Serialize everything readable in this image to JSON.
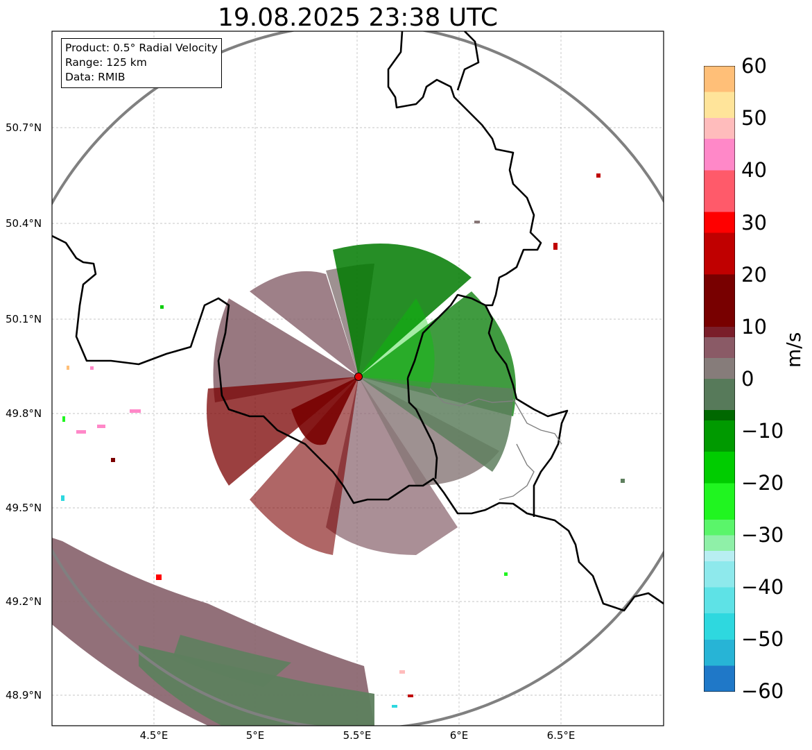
{
  "title": "19.08.2025 23:38 UTC",
  "info_box": {
    "product": "Product: 0.5° Radial Velocity",
    "range": "Range: 125 km",
    "data": "Data: RMIB"
  },
  "axes": {
    "y_ticks": [
      "50.7°N",
      "50.4°N",
      "50.1°N",
      "49.8°N",
      "49.5°N",
      "49.2°N",
      "48.9°N"
    ],
    "x_ticks": [
      "4.5°E",
      "5°E",
      "5.5°E",
      "6°E",
      "6.5°E"
    ]
  },
  "colorbar": {
    "unit": "m/s",
    "ticks": [
      "60",
      "50",
      "40",
      "30",
      "20",
      "10",
      "0",
      "−10",
      "−20",
      "−30",
      "−40",
      "−50",
      "−60"
    ],
    "range": [
      -60,
      60
    ],
    "stops": [
      {
        "v": -60,
        "c": "#1f78c8"
      },
      {
        "v": -55,
        "c": "#27b4d6"
      },
      {
        "v": -50,
        "c": "#2ed8df"
      },
      {
        "v": -45,
        "c": "#5ee2e6"
      },
      {
        "v": -40,
        "c": "#8ee9ec"
      },
      {
        "v": -35,
        "c": "#b8eef2"
      },
      {
        "v": -33,
        "c": "#8ff0a8"
      },
      {
        "v": -30,
        "c": "#5af56a"
      },
      {
        "v": -27,
        "c": "#20f520"
      },
      {
        "v": -20,
        "c": "#00cc00"
      },
      {
        "v": -14,
        "c": "#009a00"
      },
      {
        "v": -8,
        "c": "#006800"
      },
      {
        "v": -6,
        "c": "#577a5a"
      },
      {
        "v": 0,
        "c": "#867c7a"
      },
      {
        "v": 4,
        "c": "#8a5a66"
      },
      {
        "v": 8,
        "c": "#7a1e2a"
      },
      {
        "v": 10,
        "c": "#780000"
      },
      {
        "v": 20,
        "c": "#c00000"
      },
      {
        "v": 28,
        "c": "#ff0000"
      },
      {
        "v": 32,
        "c": "#ff5a6a"
      },
      {
        "v": 40,
        "c": "#ff88c8"
      },
      {
        "v": 46,
        "c": "#ffbcbc"
      },
      {
        "v": 50,
        "c": "#ffe49a"
      },
      {
        "v": 55,
        "c": "#ffbf78"
      },
      {
        "v": 60,
        "c": "#ff9a56"
      }
    ]
  },
  "colors": {
    "approaching_strong": "#007a00",
    "approaching_weak": "#5e7f5e",
    "near_zero": "#867575",
    "receding_weak": "#86606a",
    "receding_strong": "#7a0000",
    "border": "#000000",
    "range_ring": "#808080",
    "radar_site": "#e00000"
  }
}
